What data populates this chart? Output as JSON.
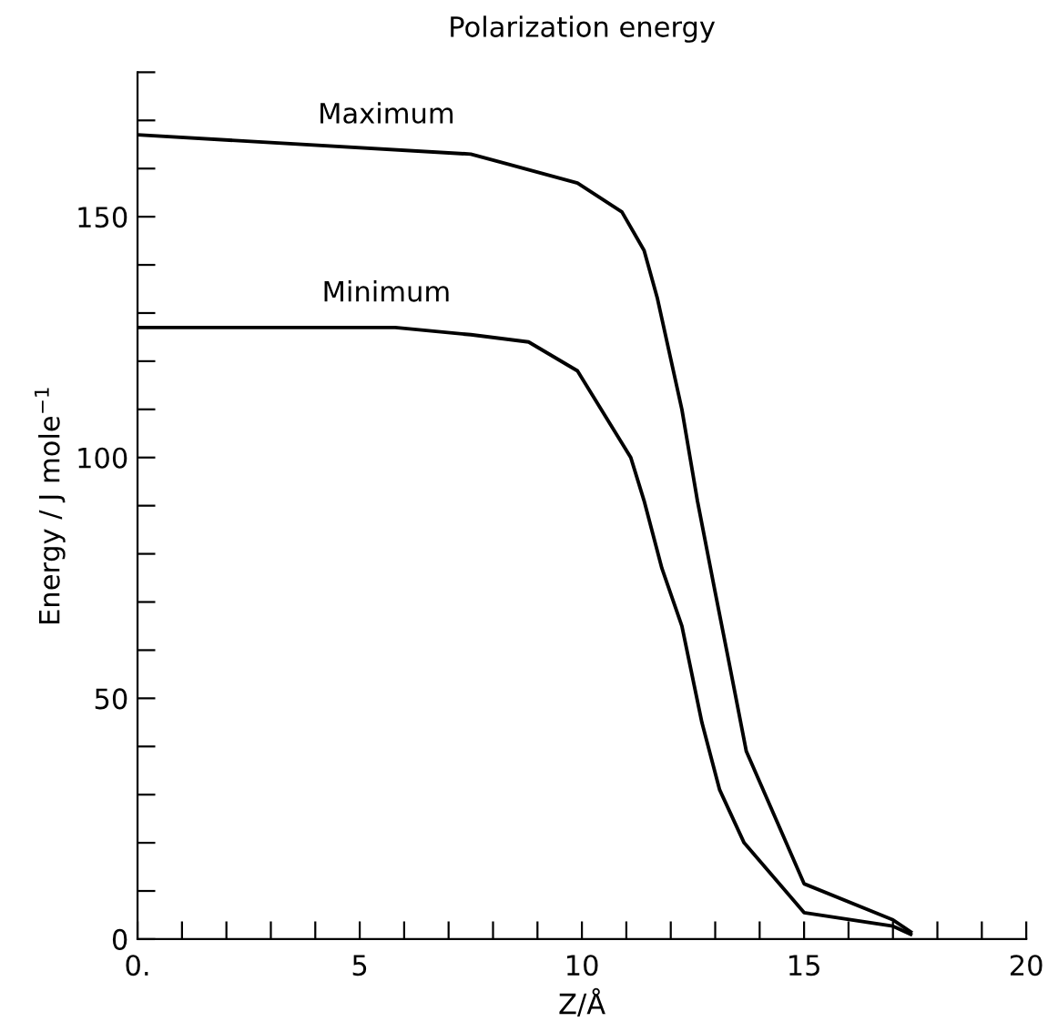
{
  "chart_data": {
    "type": "line",
    "title": "Polarization energy",
    "xlabel": "Z/Å",
    "ylabel": "Energy / J mole$^{−1}$",
    "xlim": [
      0,
      20
    ],
    "ylim": [
      0,
      180
    ],
    "xticks": [
      {
        "value": 0,
        "label": "0."
      },
      {
        "value": 1,
        "label": null
      },
      {
        "value": 2,
        "label": null
      },
      {
        "value": 3,
        "label": null
      },
      {
        "value": 4,
        "label": null
      },
      5,
      {
        "value": 6,
        "label": null
      },
      {
        "value": 7,
        "label": null
      },
      {
        "value": 8,
        "label": null
      },
      {
        "value": 9,
        "label": null
      },
      10,
      {
        "value": 11,
        "label": null
      },
      {
        "value": 12,
        "label": null
      },
      {
        "value": 13,
        "label": null
      },
      {
        "value": 14,
        "label": null
      },
      15,
      {
        "value": 16,
        "label": null
      },
      {
        "value": 17,
        "label": null
      },
      {
        "value": 18,
        "label": null
      },
      {
        "value": 19,
        "label": null
      },
      20
    ],
    "yticks": [
      0,
      {
        "value": 10,
        "label": null
      },
      {
        "value": 20,
        "label": null
      },
      {
        "value": 30,
        "label": null
      },
      {
        "value": 40,
        "label": null
      },
      50,
      {
        "value": 60,
        "label": null
      },
      {
        "value": 70,
        "label": null
      },
      {
        "value": 80,
        "label": null
      },
      {
        "value": 90,
        "label": null
      },
      100,
      {
        "value": 110,
        "label": null
      },
      {
        "value": 120,
        "label": null
      },
      {
        "value": 130,
        "label": null
      },
      {
        "value": 140,
        "label": null
      },
      150,
      {
        "value": 160,
        "label": null
      },
      {
        "value": 170,
        "label": null
      },
      {
        "value": 180,
        "label": null
      }
    ],
    "grid": false,
    "legend": false,
    "marker": "none",
    "line_style": "solid",
    "series": [
      {
        "name": "Maximum",
        "color": "#000000",
        "x": [
          0,
          7.5,
          8.3,
          9.9,
          10.9,
          11.4,
          11.7,
          12.25,
          12.6,
          13.0,
          13.3,
          13.7,
          15.0,
          17.0,
          17.4
        ],
        "values": [
          167,
          163,
          161,
          157,
          151,
          143,
          133,
          110,
          91,
          72,
          58,
          39,
          11.5,
          4,
          1.5
        ]
      },
      {
        "name": "Minimum",
        "color": "#000000",
        "x": [
          0,
          5.8,
          7.5,
          8.8,
          9.9,
          11.1,
          11.4,
          11.8,
          12.25,
          12.7,
          13.1,
          13.65,
          15.0,
          17.0,
          17.4
        ],
        "values": [
          127,
          127,
          125.5,
          124,
          118,
          100,
          91,
          77,
          65,
          45,
          31,
          20,
          5.5,
          2.7,
          1
        ]
      }
    ]
  }
}
